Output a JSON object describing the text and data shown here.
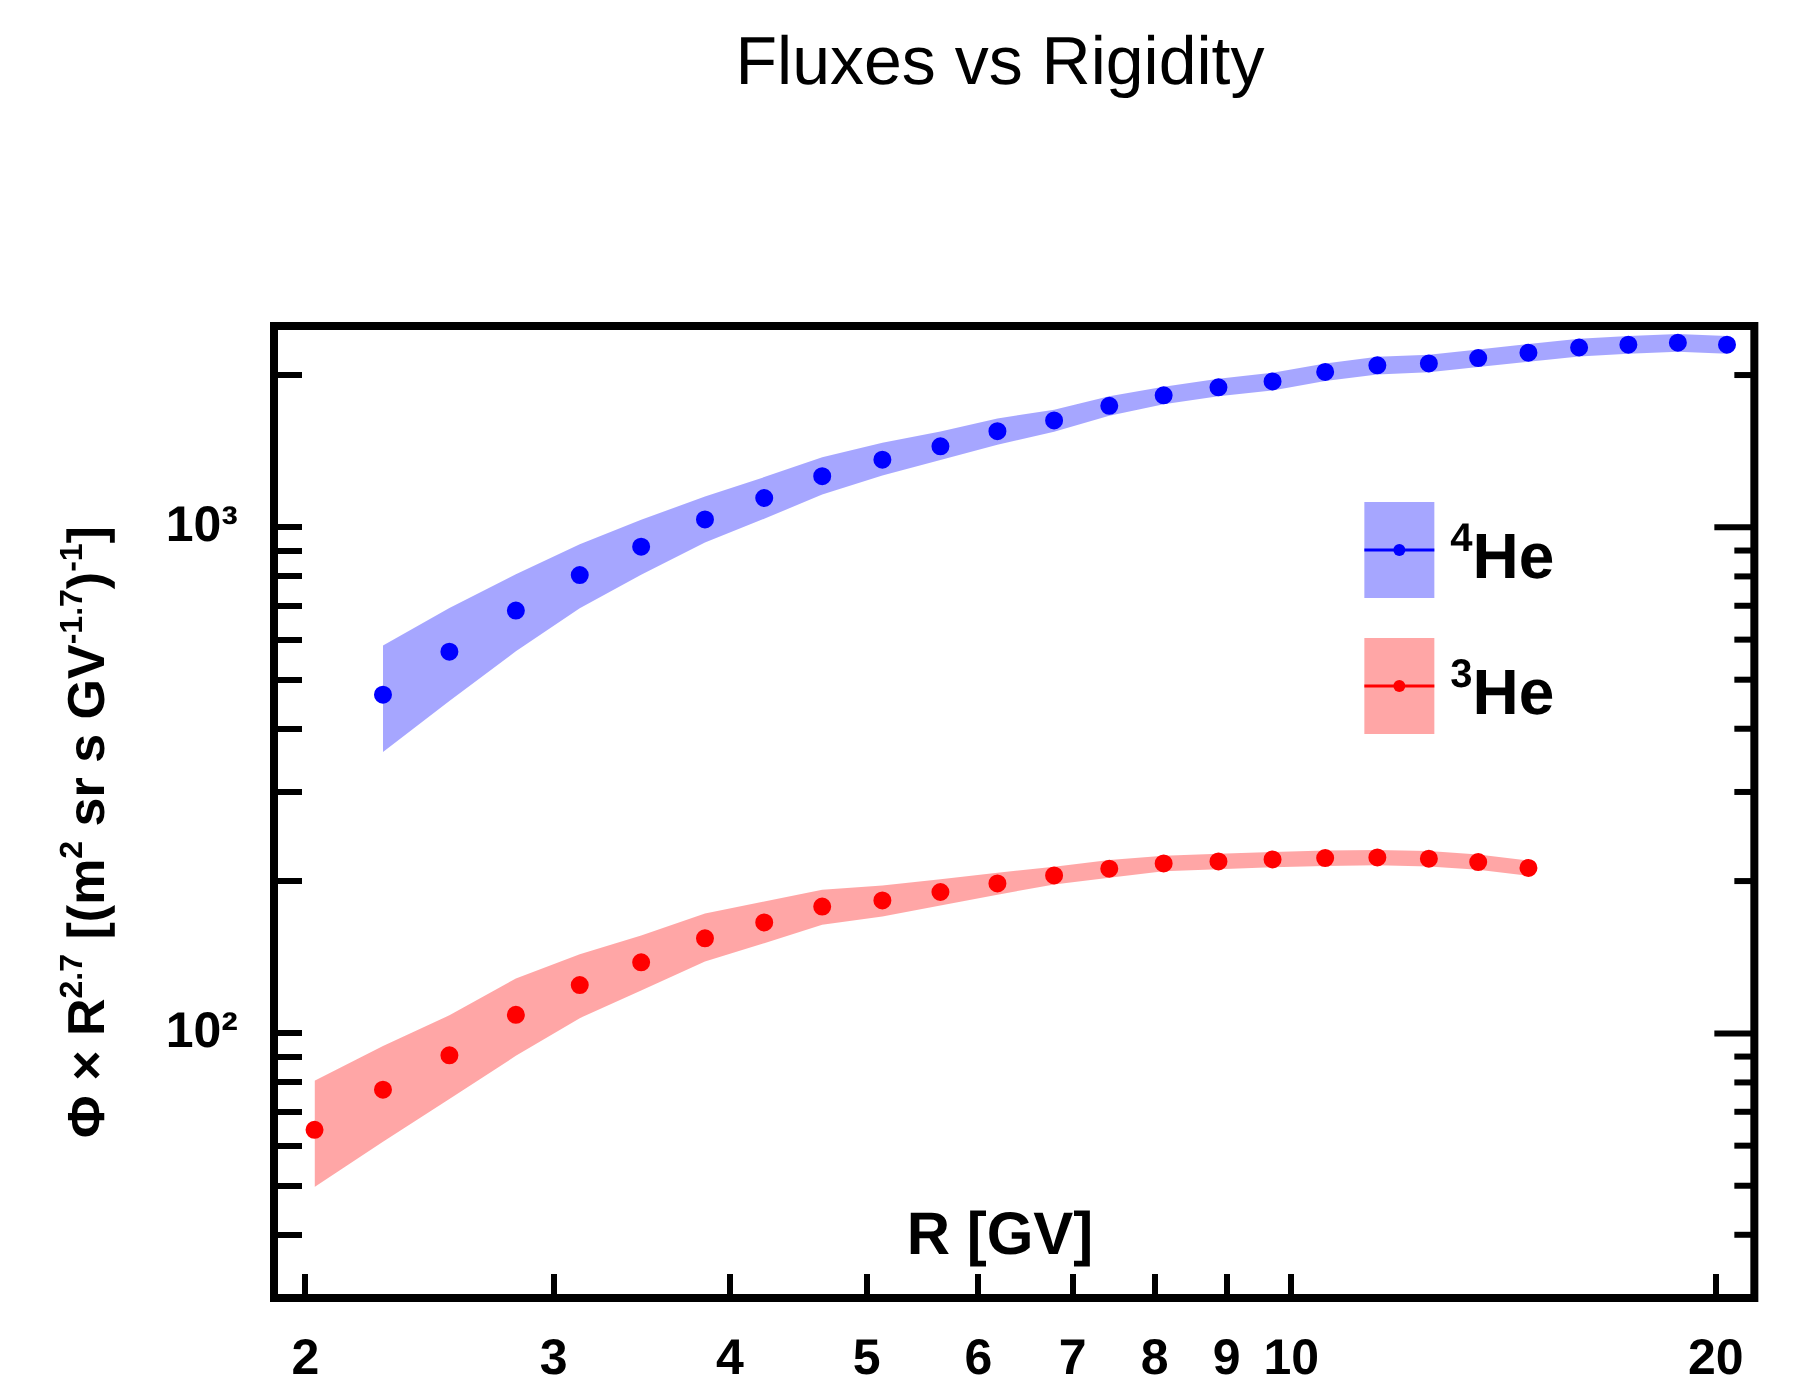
{
  "chart_data": {
    "type": "scatter",
    "title": "Fluxes vs Rigidity",
    "xlabel": "R [GV]",
    "ylabel": "Φ × R$^{2.7}$ [(m$^{2}$ sr s GV$^{-1.7}$)$^{-1}$]",
    "log": "xy",
    "grid": false,
    "legend": "right",
    "marker": "circle",
    "xlim": [
      1.9,
      21.3
    ],
    "ylim": [
      30,
      2500
    ],
    "xticks": [
      2,
      3,
      4,
      5,
      6,
      7,
      8,
      9,
      10,
      20
    ],
    "yticks": [
      {
        "value": 40,
        "label": null
      },
      {
        "value": 50,
        "label": null
      },
      {
        "value": 60,
        "label": null
      },
      {
        "value": 70,
        "label": null
      },
      {
        "value": 80,
        "label": null
      },
      {
        "value": 90,
        "label": null
      },
      {
        "value": 100,
        "label": "10²"
      },
      {
        "value": 200,
        "label": null
      },
      {
        "value": 300,
        "label": null
      },
      {
        "value": 400,
        "label": null
      },
      {
        "value": 500,
        "label": null
      },
      {
        "value": 600,
        "label": null
      },
      {
        "value": 700,
        "label": null
      },
      {
        "value": 800,
        "label": null
      },
      {
        "value": 900,
        "label": null
      },
      {
        "value": 1000,
        "label": "10³"
      },
      {
        "value": 2000,
        "label": null
      }
    ],
    "series": [
      {
        "name": "$^{4}$He",
        "color": "#0000ff",
        "x": [
          2.27,
          2.53,
          2.82,
          3.13,
          3.46,
          3.84,
          4.23,
          4.65,
          5.13,
          5.64,
          6.19,
          6.79,
          7.43,
          8.12,
          8.88,
          9.7,
          10.57,
          11.51,
          12.52,
          13.57,
          14.73,
          16.0,
          17.34,
          18.8,
          20.37
        ],
        "values": [
          467,
          568,
          685,
          805,
          916,
          1037,
          1143,
          1262,
          1361,
          1446,
          1549,
          1627,
          1739,
          1824,
          1891,
          1943,
          2028,
          2090,
          2109,
          2161,
          2214,
          2267,
          2296,
          2317,
          2296
        ],
        "upper": [
          584,
          693,
          808,
          926,
          1035,
          1151,
          1257,
          1376,
          1470,
          1547,
          1642,
          1708,
          1817,
          1897,
          1967,
          2021,
          2109,
          2174,
          2193,
          2247,
          2303,
          2358,
          2388,
          2410,
          2388
        ],
        "lower": [
          360,
          454,
          569,
          692,
          806,
          933,
          1040,
          1161,
          1266,
          1359,
          1456,
          1546,
          1661,
          1751,
          1815,
          1865,
          1947,
          2006,
          2025,
          2075,
          2125,
          2176,
          2204,
          2224,
          2204
        ]
      },
      {
        "name": "$^{3}$He",
        "color": "#ff0000",
        "x": [
          2.03,
          2.27,
          2.53,
          2.82,
          3.13,
          3.46,
          3.84,
          4.23,
          4.65,
          5.13,
          5.64,
          6.19,
          6.79,
          7.43,
          8.12,
          8.88,
          9.7,
          10.57,
          11.51,
          12.52,
          13.57,
          14.73
        ],
        "values": [
          64.5,
          77.4,
          90.5,
          108.8,
          124.6,
          138.2,
          154.1,
          165.7,
          178.1,
          183.1,
          190.3,
          197.9,
          205.2,
          211.6,
          216.7,
          218.7,
          220.7,
          222.1,
          222.7,
          221.5,
          218.1,
          212.3
        ],
        "upper": [
          80.6,
          94.4,
          108.6,
          128.4,
          143.3,
          156.2,
          172.6,
          182.3,
          192.3,
          196.0,
          201.7,
          207.8,
          213.4,
          220.1,
          224.3,
          226.4,
          228.4,
          229.9,
          230.5,
          229.3,
          225.7,
          219.7
        ],
        "lower": [
          49.7,
          61.1,
          74.2,
          90.3,
          107.2,
          121.6,
          138.7,
          150.8,
          163.9,
          170.3,
          178.9,
          188.0,
          197.0,
          203.1,
          209.1,
          211.0,
          213.0,
          214.3,
          214.9,
          213.7,
          210.5,
          204.9
        ]
      }
    ]
  }
}
